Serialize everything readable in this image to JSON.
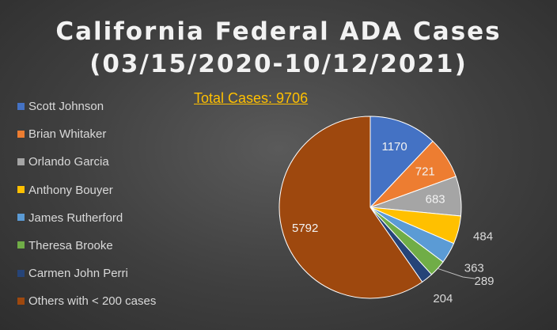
{
  "chart_data": {
    "type": "pie",
    "title_line1": "California Federal ADA Cases",
    "title_line2": "(03/15/2020-10/12/2021)",
    "subtitle": "Total Cases: 9706",
    "legend_position": "left",
    "slices": [
      {
        "name": "Scott Johnson",
        "value": 1170,
        "color": "#4472c4"
      },
      {
        "name": "Brian Whitaker",
        "value": 721,
        "color": "#ed7d31"
      },
      {
        "name": "Orlando Garcia",
        "value": 683,
        "color": "#a5a5a5"
      },
      {
        "name": "Anthony Bouyer",
        "value": 484,
        "color": "#ffc000"
      },
      {
        "name": "James Rutherford",
        "value": 363,
        "color": "#5b9bd5"
      },
      {
        "name": "Theresa Brooke",
        "value": 289,
        "color": "#70ad47"
      },
      {
        "name": "Carmen John Perri",
        "value": 204,
        "color": "#264478"
      },
      {
        "name": "Others with < 200 cases",
        "value": 5792,
        "color": "#9e480e"
      }
    ]
  }
}
